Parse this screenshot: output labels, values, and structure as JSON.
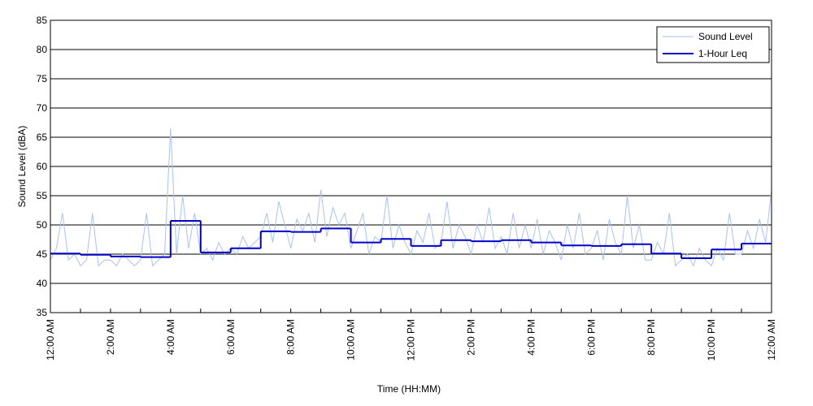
{
  "chart_data": {
    "type": "line",
    "xlabel": "Time (HH:MM)",
    "ylabel": "Sound Level (dBA)",
    "xlim": [
      0,
      24
    ],
    "ylim": [
      35,
      85
    ],
    "yticks": [
      35,
      40,
      45,
      50,
      55,
      60,
      65,
      70,
      75,
      80,
      85
    ],
    "xticks": [
      {
        "value": 0,
        "label": "12:00 AM"
      },
      {
        "value": 2,
        "label": "2:00 AM"
      },
      {
        "value": 4,
        "label": "4:00 AM"
      },
      {
        "value": 6,
        "label": "6:00 AM"
      },
      {
        "value": 8,
        "label": "8:00 AM"
      },
      {
        "value": 10,
        "label": "10:00 AM"
      },
      {
        "value": 12,
        "label": "12:00 PM"
      },
      {
        "value": 14,
        "label": "2:00 PM"
      },
      {
        "value": 16,
        "label": "4:00 PM"
      },
      {
        "value": 18,
        "label": "6:00 PM"
      },
      {
        "value": 20,
        "label": "8:00 PM"
      },
      {
        "value": 22,
        "label": "10:00 PM"
      },
      {
        "value": 24,
        "label": "12:00 AM"
      }
    ],
    "xminorticks": [
      1,
      3,
      5,
      7,
      9,
      11,
      13,
      15,
      17,
      19,
      21,
      23
    ],
    "grid": true,
    "legend": "upper right",
    "series": [
      {
        "name": "Sound Level",
        "color": "#a9c2f2",
        "style": "line",
        "x": [
          0,
          0.2,
          0.4,
          0.6,
          0.8,
          1,
          1.2,
          1.4,
          1.6,
          1.8,
          2,
          2.2,
          2.4,
          2.6,
          2.8,
          3,
          3.2,
          3.4,
          3.6,
          3.8,
          4,
          4.2,
          4.4,
          4.6,
          4.8,
          5,
          5.2,
          5.4,
          5.6,
          5.8,
          6,
          6.2,
          6.4,
          6.6,
          6.8,
          7,
          7.2,
          7.4,
          7.6,
          7.8,
          8,
          8.2,
          8.4,
          8.6,
          8.8,
          9,
          9.2,
          9.4,
          9.6,
          9.8,
          10,
          10.2,
          10.4,
          10.6,
          10.8,
          11,
          11.2,
          11.4,
          11.6,
          11.8,
          12,
          12.2,
          12.4,
          12.6,
          12.8,
          13,
          13.2,
          13.4,
          13.6,
          13.8,
          14,
          14.2,
          14.4,
          14.6,
          14.8,
          15,
          15.2,
          15.4,
          15.6,
          15.8,
          16,
          16.2,
          16.4,
          16.6,
          16.8,
          17,
          17.2,
          17.4,
          17.6,
          17.8,
          18,
          18.2,
          18.4,
          18.6,
          18.8,
          19,
          19.2,
          19.4,
          19.6,
          19.8,
          20,
          20.2,
          20.4,
          20.6,
          20.8,
          21,
          21.2,
          21.4,
          21.6,
          21.8,
          22,
          22.2,
          22.4,
          22.6,
          22.8,
          23,
          23.2,
          23.4,
          23.6,
          23.8,
          24
        ],
        "values": [
          44,
          46,
          52,
          44,
          45,
          43,
          44,
          52,
          43,
          44,
          44,
          43,
          45,
          44,
          43,
          44,
          52,
          43,
          44,
          45,
          66.5,
          45,
          55,
          46,
          52,
          45,
          46,
          44,
          47,
          45,
          46,
          45,
          48,
          46,
          47,
          48,
          52,
          47,
          54,
          50,
          46,
          51,
          49,
          52,
          47,
          56,
          48,
          53,
          50,
          52,
          46,
          49,
          52,
          45,
          48,
          47,
          55,
          46,
          50,
          47,
          45,
          49,
          47,
          52,
          46,
          47,
          54,
          46,
          50,
          48,
          45,
          50,
          47,
          53,
          46,
          48,
          45,
          52,
          46,
          50,
          46,
          51,
          45,
          49,
          47,
          44,
          50,
          46,
          52,
          45,
          46,
          49,
          44,
          51,
          47,
          45,
          55,
          46,
          50,
          44,
          44,
          47,
          45,
          52,
          43,
          44,
          45,
          43,
          46,
          44,
          43,
          46,
          44,
          52,
          45,
          45,
          49,
          46,
          51,
          47,
          56
        ]
      },
      {
        "name": "1-Hour Leq",
        "color": "#0000cc",
        "style": "step",
        "x": [
          0,
          1,
          2,
          3,
          4,
          5,
          6,
          7,
          8,
          9,
          10,
          11,
          12,
          13,
          14,
          15,
          16,
          17,
          18,
          19,
          20,
          21,
          22,
          23
        ],
        "values": [
          45.1,
          44.9,
          44.6,
          44.5,
          50.7,
          45.3,
          46.0,
          48.9,
          48.8,
          49.4,
          47.0,
          47.6,
          46.4,
          47.4,
          47.2,
          47.4,
          47.0,
          46.5,
          46.4,
          46.7,
          45.1,
          44.3,
          45.8,
          46.8
        ]
      }
    ]
  }
}
